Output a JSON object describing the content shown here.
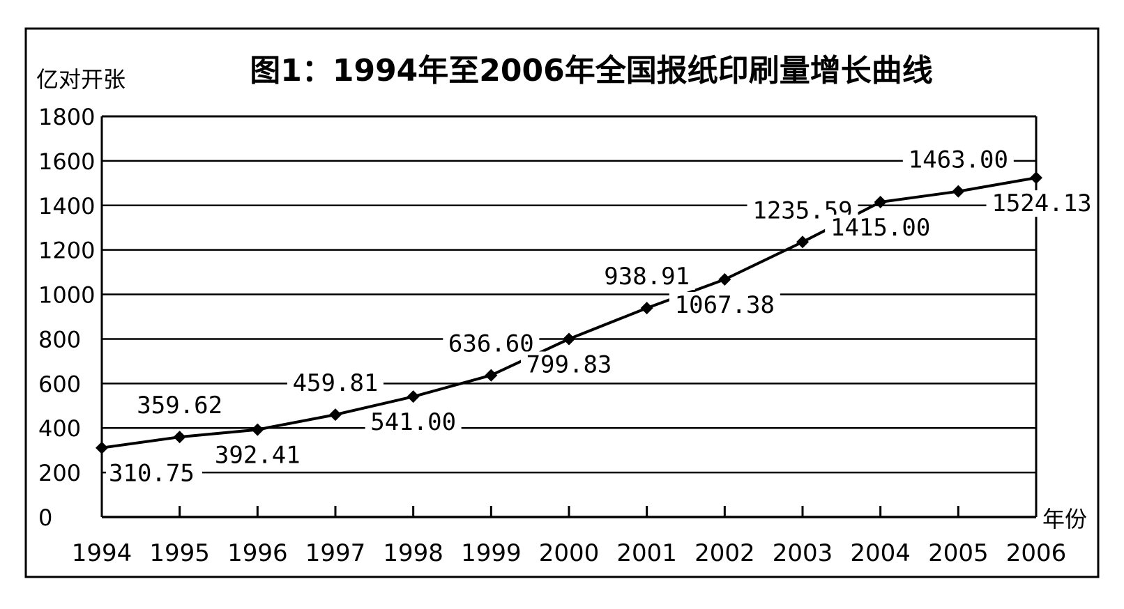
{
  "chart_data": {
    "type": "line",
    "title": "图1：1994年至2006年全国报纸印刷量增长曲线",
    "ylabel": "亿对开张",
    "xlabel": "年份",
    "ylim": [
      0,
      1800
    ],
    "yticks": [
      0,
      200,
      400,
      600,
      800,
      1000,
      1200,
      1400,
      1600,
      1800
    ],
    "ytick_labels": [
      "0",
      "200",
      "400",
      "600",
      "800",
      "1000",
      "1200",
      "1400",
      "1600",
      "1800"
    ],
    "grid": true,
    "legend": "none",
    "x": [
      "1994",
      "1995",
      "1996",
      "1997",
      "1998",
      "1999",
      "2000",
      "2001",
      "2002",
      "2003",
      "2004",
      "2005",
      "2006"
    ],
    "series": [
      {
        "values": [
          310.75,
          359.62,
          392.41,
          459.81,
          541.0,
          636.6,
          799.83,
          938.91,
          1067.38,
          1235.59,
          1415.0,
          1463.0,
          1524.13
        ],
        "labels": [
          "310.75",
          "359.62",
          "392.41",
          "459.81",
          "541.00",
          "636.60",
          "799.83",
          "938.91",
          "1067.38",
          "1235.59",
          "1415.00",
          "1463.00",
          "1524.13"
        ]
      }
    ]
  }
}
